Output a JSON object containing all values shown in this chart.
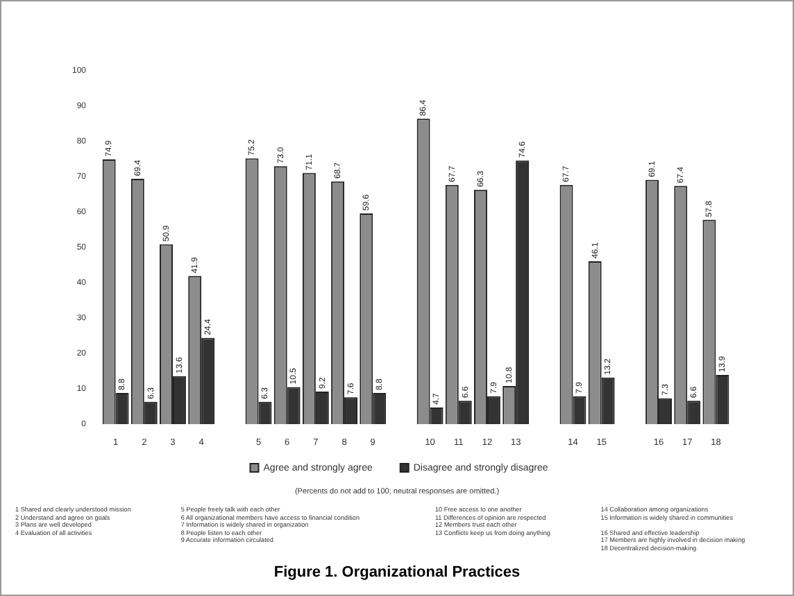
{
  "chart_data": {
    "type": "bar",
    "title": "Figure 1. Organizational Practices",
    "categories": [
      "1",
      "2",
      "3",
      "4",
      null,
      "5",
      "6",
      "7",
      "8",
      "9",
      null,
      "10",
      "11",
      "12",
      "13",
      null,
      "14",
      "15",
      null,
      "16",
      "17",
      "18"
    ],
    "series": [
      {
        "name": "Agree and strongly agree",
        "color": "#8c8c8c",
        "values": [
          74.9,
          69.4,
          50.9,
          41.9,
          null,
          75.2,
          73.0,
          71.1,
          68.7,
          59.6,
          null,
          86.4,
          67.7,
          66.3,
          10.8,
          null,
          67.7,
          46.1,
          null,
          69.1,
          67.4,
          57.8
        ],
        "value_labels": [
          "74.9",
          "69.4",
          "50.9",
          "41.9",
          null,
          "75.2",
          "73.0",
          "71.1",
          "68.7",
          "59.6",
          null,
          "86.4",
          "67.7",
          "66.3",
          "10.8",
          null,
          "67.7",
          "46.1",
          null,
          "69.1",
          "67.4",
          "57.8"
        ]
      },
      {
        "name": "Disagree and strongly disagree",
        "color": "#333333",
        "values": [
          8.8,
          6.3,
          13.6,
          24.4,
          null,
          6.3,
          10.5,
          9.2,
          7.6,
          8.8,
          null,
          4.7,
          6.6,
          7.9,
          74.6,
          null,
          7.9,
          13.2,
          null,
          7.3,
          6.6,
          13.9
        ],
        "value_labels": [
          "8.8",
          "6.3",
          "13.6",
          "24.4",
          null,
          "6.3",
          "10.5",
          "9.2",
          "7.6",
          "8.8",
          null,
          "4.7",
          "6.6",
          "7.9",
          "74.6",
          null,
          "7.9",
          "13.2",
          null,
          "7.3",
          "6.6",
          "13.9"
        ]
      }
    ],
    "ylim": [
      0,
      100
    ],
    "yticks": [
      0,
      10,
      20,
      30,
      40,
      50,
      60,
      70,
      80,
      90,
      100
    ],
    "grid": false,
    "legend": "bottom",
    "annotations": [
      "(Percents do not add to 100; neutral responses are omitted.)",
      "1 Shared and clearly understood mission\n2 Understand and agree on goals\n3 Plans are well developed\n4 Evaluation of all activities",
      "5 People freely talk with each other\n6 All organizational members have access to financial condition\n7 Information is widely shared in organization\n8 People listen to each other\n9 Accurate information circulated",
      "10 Free access to one another\n11 Differences of opinion are respected\n12 Members trust each other\n13 Conflicts keep us from doing anything",
      "14 Collaboration among organizations\n15 Information is widely shared in communities\n\n16 Shared and effective leadership\n17 Members are highly involved in decision making\n18 Decentralized decision-making"
    ]
  }
}
